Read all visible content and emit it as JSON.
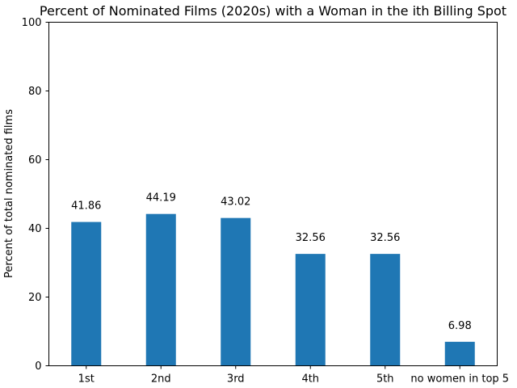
{
  "chart_data": {
    "type": "bar",
    "title": "Percent of Nominated Films (2020s) with a Woman in the ith Billing Spot",
    "xlabel": "",
    "ylabel": "Percent of total nominated films",
    "categories": [
      "1st",
      "2nd",
      "3rd",
      "4th",
      "5th",
      "no women in top 5"
    ],
    "values": [
      41.86,
      44.19,
      43.02,
      32.56,
      32.56,
      6.98
    ],
    "value_labels": [
      "41.86",
      "44.19",
      "43.02",
      "32.56",
      "32.56",
      "6.98"
    ],
    "ylim": [
      0,
      100
    ],
    "yticks": [
      0,
      20,
      40,
      60,
      80,
      100
    ],
    "ytick_labels": [
      "0",
      "20",
      "40",
      "60",
      "80",
      "100"
    ],
    "grid": false,
    "bar_color": "#1f77b4"
  }
}
